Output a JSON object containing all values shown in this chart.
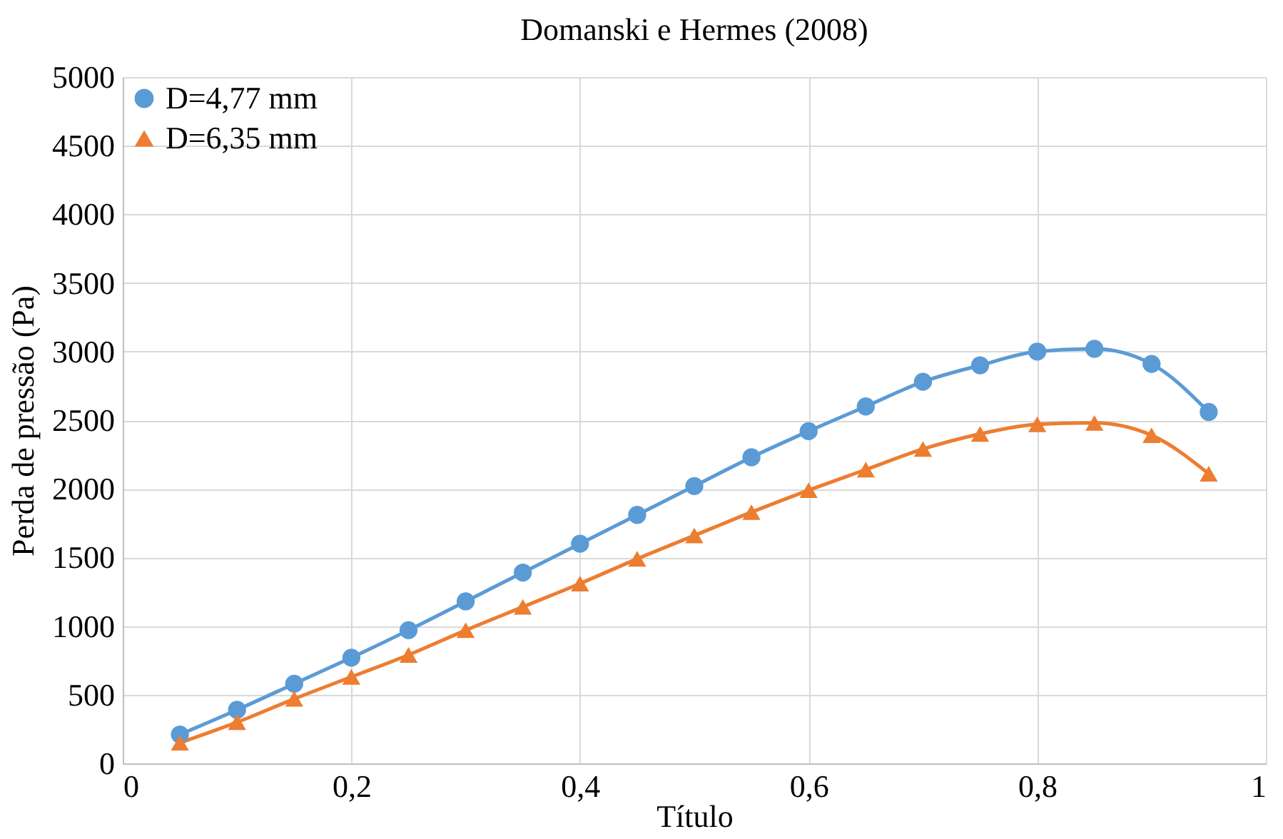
{
  "chart_data": {
    "type": "line",
    "title": "Domanski e Hermes (2008)",
    "xlabel": "Título",
    "ylabel": "Perda de pressão (Pa)",
    "x": [
      0.05,
      0.1,
      0.15,
      0.2,
      0.25,
      0.3,
      0.35,
      0.4,
      0.45,
      0.5,
      0.55,
      0.6,
      0.65,
      0.7,
      0.75,
      0.8,
      0.85,
      0.9,
      0.95
    ],
    "series": [
      {
        "name": "D=4,77 mm",
        "color": "#5b9bd5",
        "marker": "circle",
        "values": [
          210,
          390,
          580,
          770,
          970,
          1180,
          1390,
          1600,
          1810,
          2020,
          2230,
          2420,
          2600,
          2780,
          2900,
          3000,
          3020,
          2910,
          2560
        ]
      },
      {
        "name": "D=6,35 mm",
        "color": "#ed7d31",
        "marker": "triangle",
        "values": [
          150,
          300,
          470,
          630,
          790,
          970,
          1140,
          1310,
          1490,
          1660,
          1830,
          1990,
          2140,
          2290,
          2400,
          2470,
          2480,
          2390,
          2110
        ]
      }
    ],
    "xlim": [
      0,
      1
    ],
    "xticks": [
      0,
      {
        "value": 0.2,
        "label": "0,2"
      },
      {
        "value": 0.4,
        "label": "0,4"
      },
      {
        "value": 0.6,
        "label": "0,6"
      },
      {
        "value": 0.8,
        "label": "0,8"
      },
      1
    ],
    "ylim": [
      0,
      5000
    ],
    "yticks": [
      0,
      500,
      1000,
      1500,
      2000,
      2500,
      3000,
      3500,
      4000,
      4500,
      5000
    ],
    "grid": true,
    "legend": "top left",
    "line_style": "solid"
  }
}
